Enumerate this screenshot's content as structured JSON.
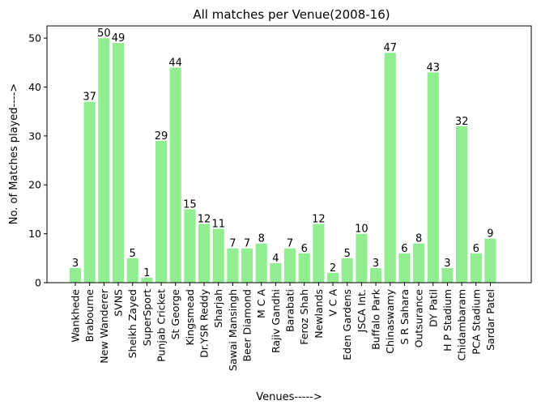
{
  "chart_data": {
    "type": "bar",
    "title": "All matches per Venue(2008-16)",
    "xlabel": "Venues----->",
    "ylabel": "No. of Matches played---->",
    "categories": [
      "Wankhede",
      "Brabourne",
      "New Wanderer",
      "SVNS",
      "Sheikh Zayed",
      "SuperSport",
      "Punjab Cricket",
      "St George",
      "Kingsmead",
      "Dr.YSR Reddy",
      "Sharjah",
      "Sawai Mansingh",
      "Beer Diamond",
      "M C A",
      "Rajiv Gandhi",
      "Barabati",
      "Feroz Shah",
      "Newlands",
      "V C A",
      "Eden Gardens",
      "JSCA Int.",
      "Buffalo Park",
      "Chinaswamy",
      "S R Sahara",
      "Outsurance",
      "DY Patil",
      "H P Stadium",
      "Chidambaram",
      "PCA Stadium",
      "Sardar Patel"
    ],
    "values": [
      3,
      37,
      50,
      49,
      5,
      1,
      29,
      44,
      15,
      12,
      11,
      7,
      7,
      8,
      4,
      7,
      6,
      12,
      2,
      5,
      10,
      3,
      47,
      6,
      8,
      43,
      3,
      32,
      6,
      9
    ],
    "ylim": [
      0,
      52.5
    ],
    "yticks": [
      0,
      10,
      20,
      30,
      40,
      50
    ],
    "bar_color": "#90ee90",
    "grid": false,
    "legend": "none"
  }
}
